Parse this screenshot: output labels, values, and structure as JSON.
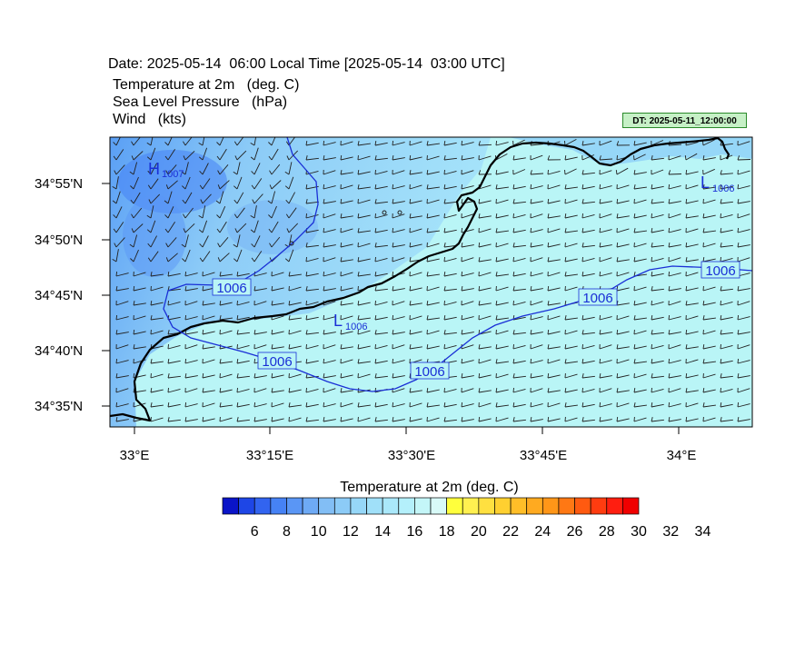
{
  "header": {
    "date_line": "Date: 2025-05-14  06:00 Local Time [2025-05-14  03:00 UTC]",
    "fields": [
      "Temperature at 2m   (deg. C)",
      "Sea Level Pressure   (hPa)",
      "Wind   (kts)"
    ],
    "dt_badge": "DT: 2025-05-11_12:00:00"
  },
  "map": {
    "lat_labels": [
      "34°55'N",
      "34°50'N",
      "34°45'N",
      "34°40'N",
      "34°35'N"
    ],
    "lon_labels": [
      "33°E",
      "33°15'E",
      "33°30'E",
      "33°45'E",
      "34°E"
    ],
    "pressure_labels": [
      "1006",
      "1006",
      "1006",
      "1006",
      "1006"
    ],
    "high_low": [
      {
        "letter": "H",
        "value": "1007"
      },
      {
        "letter": "L",
        "value": "1006"
      },
      {
        "letter": "L",
        "value": "1006"
      }
    ],
    "colors": {
      "sea": "#b9f5f6",
      "land_cool": "#8fd6f5",
      "coast": "#000000",
      "isobar": "#1a2fd6"
    }
  },
  "colorbar": {
    "title": "Temperature at 2m  (deg. C)",
    "labels": [
      "6",
      "8",
      "10",
      "12",
      "14",
      "16",
      "18",
      "20",
      "22",
      "24",
      "26",
      "28",
      "30",
      "32",
      "34"
    ],
    "colors": [
      "#0a14c8",
      "#1e46e6",
      "#3264f0",
      "#4682f5",
      "#5a96f5",
      "#6eaaf5",
      "#82bef5",
      "#8ccbf7",
      "#96d7f8",
      "#a0e0f9",
      "#aae8fa",
      "#b4f0fb",
      "#c4f6f8",
      "#d8faf8",
      "#ffff3c",
      "#fff050",
      "#ffe040",
      "#ffd030",
      "#ffbe28",
      "#ffaa20",
      "#ff9618",
      "#ff7814",
      "#ff5a10",
      "#ff3c10",
      "#ff1e10",
      "#f00000"
    ]
  }
}
